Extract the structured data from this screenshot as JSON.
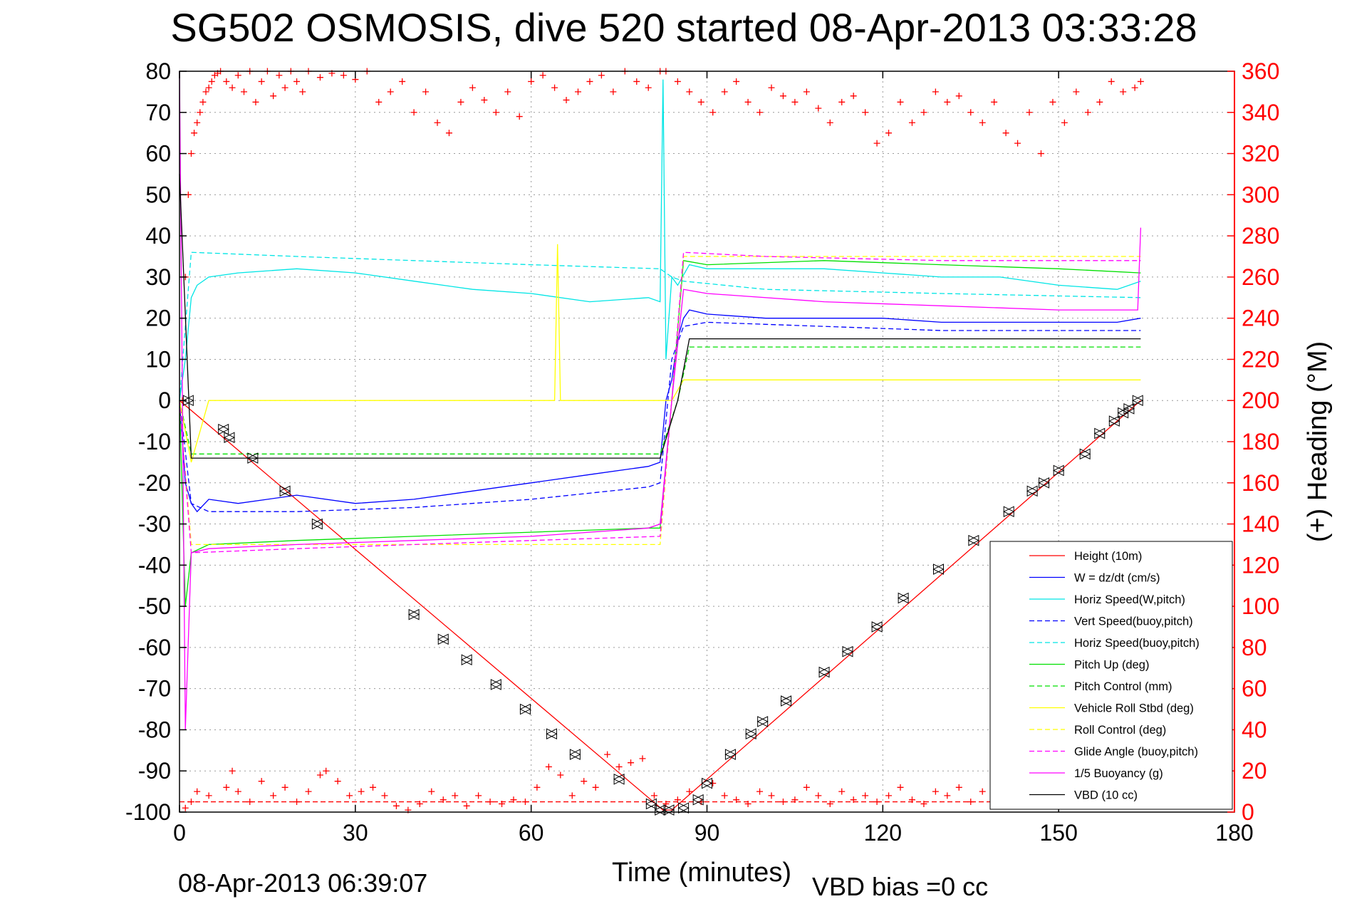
{
  "chart_data": {
    "type": "line",
    "title": "SG502 OSMOSIS, dive 520 started 08-Apr-2013 03:33:28",
    "xlabel": "Time (minutes)",
    "ylabel_right": "(+) Heading (°M)",
    "footer_left": "08-Apr-2013 06:39:07",
    "footer_right": "VBD bias =0 cc",
    "xlim": [
      0,
      180
    ],
    "ylim_left": [
      -100,
      80
    ],
    "ylim_right": [
      0,
      360
    ],
    "grid": true,
    "legend_position": "bottom-right",
    "x_ticks": [
      "0",
      "30",
      "60",
      "90",
      "120",
      "150",
      "180"
    ],
    "y_ticks_left": [
      "80",
      "70",
      "60",
      "50",
      "40",
      "30",
      "20",
      "10",
      "0",
      "-10",
      "-20",
      "-30",
      "-40",
      "-50",
      "-60",
      "-70",
      "-80",
      "-90",
      "-100"
    ],
    "y_ticks_right": [
      "360",
      "340",
      "320",
      "300",
      "280",
      "260",
      "240",
      "220",
      "200",
      "180",
      "160",
      "140",
      "120",
      "100",
      "80",
      "60",
      "40",
      "20",
      "0"
    ],
    "series": [
      {
        "name": "Height (10m)",
        "color": "#ff0000",
        "dash": false,
        "axis": "left",
        "x": [
          0,
          82.5,
          84,
          164
        ],
        "y": [
          0,
          -99.5,
          -99.5,
          0
        ]
      },
      {
        "name": "W = dz/dt (cm/s)",
        "color": "#0000ff",
        "dash": false,
        "axis": "left",
        "x": [
          0,
          1,
          2,
          3,
          5,
          10,
          20,
          30,
          40,
          50,
          60,
          70,
          80,
          82,
          83,
          84,
          85,
          86,
          87,
          90,
          100,
          110,
          120,
          130,
          140,
          150,
          160,
          164
        ],
        "y": [
          0,
          -20,
          -25,
          -27,
          -24,
          -25,
          -23,
          -25,
          -24,
          -22,
          -20,
          -18,
          -16,
          -15,
          0,
          5,
          15,
          20,
          22,
          21,
          20,
          20,
          20,
          19,
          19,
          19,
          19,
          20
        ]
      },
      {
        "name": "Horiz Speed(W,pitch)",
        "color": "#00e5e5",
        "dash": false,
        "axis": "left",
        "x": [
          0,
          1,
          2,
          3,
          5,
          10,
          20,
          30,
          40,
          50,
          60,
          70,
          80,
          82,
          82.5,
          83,
          84,
          85,
          87,
          90,
          100,
          110,
          120,
          130,
          140,
          150,
          160,
          164
        ],
        "y": [
          0,
          10,
          25,
          28,
          30,
          31,
          32,
          31,
          29,
          27,
          26,
          24,
          25,
          24,
          78,
          10,
          30,
          28,
          33,
          32,
          32,
          32,
          31,
          30,
          30,
          28,
          27,
          29
        ]
      },
      {
        "name": "Vert Speed(buoy,pitch)",
        "color": "#0000ff",
        "dash": true,
        "axis": "left",
        "x": [
          0,
          2,
          5,
          20,
          40,
          60,
          80,
          82,
          84,
          86,
          90,
          110,
          130,
          150,
          164
        ],
        "y": [
          0,
          -25,
          -27,
          -27,
          -26,
          -24,
          -21,
          -20,
          10,
          18,
          19,
          18,
          17,
          17,
          17
        ]
      },
      {
        "name": "Horiz Speed(buoy,pitch)",
        "color": "#00e5e5",
        "dash": true,
        "axis": "left",
        "x": [
          0,
          2,
          20,
          40,
          60,
          82,
          84,
          86,
          100,
          130,
          164
        ],
        "y": [
          0,
          36,
          35,
          34,
          33,
          32,
          30,
          29,
          27,
          26,
          25
        ]
      },
      {
        "name": "Pitch Up (deg)",
        "color": "#00e000",
        "dash": false,
        "axis": "left",
        "x": [
          0,
          1,
          2,
          5,
          20,
          40,
          60,
          80,
          82,
          84,
          86,
          90,
          110,
          130,
          150,
          164
        ],
        "y": [
          0,
          -50,
          -37,
          -35,
          -34,
          -33,
          -32,
          -31,
          -31,
          0,
          34,
          33,
          34,
          33,
          32,
          31
        ]
      },
      {
        "name": "Pitch Control (mm)",
        "color": "#00e000",
        "dash": true,
        "axis": "left",
        "x": [
          0,
          2,
          82,
          85,
          87,
          164
        ],
        "y": [
          0,
          -13,
          -13,
          0,
          13,
          13
        ]
      },
      {
        "name": "Vehicle Roll Stbd (deg)",
        "color": "#ffff00",
        "dash": false,
        "axis": "left",
        "x": [
          0,
          2,
          5,
          10,
          20,
          30,
          40,
          50,
          60,
          64,
          64.5,
          65,
          70,
          80,
          82,
          84,
          86,
          88,
          90,
          100,
          110,
          120,
          130,
          140,
          150,
          160,
          164
        ],
        "y": [
          0,
          -15,
          0,
          0,
          0,
          0,
          0,
          0,
          0,
          0,
          38,
          0,
          0,
          0,
          0,
          0,
          5,
          5,
          5,
          5,
          5,
          5,
          5,
          5,
          5,
          5,
          5
        ]
      },
      {
        "name": "Roll Control (deg)",
        "color": "#ffff00",
        "dash": true,
        "axis": "left",
        "x": [
          0,
          2,
          82,
          84,
          86,
          164
        ],
        "y": [
          0,
          -35,
          -35,
          0,
          35,
          35
        ]
      },
      {
        "name": "Glide Angle (buoy,pitch)",
        "color": "#ff00ff",
        "dash": true,
        "axis": "left",
        "x": [
          0,
          2,
          20,
          40,
          60,
          82,
          84,
          86,
          100,
          130,
          164
        ],
        "y": [
          0,
          -37,
          -36,
          -35,
          -34,
          -33,
          0,
          36,
          35,
          34,
          34
        ]
      },
      {
        "name": "1/5 Buoyancy (g)",
        "color": "#ff00ff",
        "dash": false,
        "axis": "left",
        "x": [
          0,
          1,
          2,
          5,
          20,
          40,
          60,
          80,
          82,
          84,
          86,
          90,
          110,
          130,
          150,
          163.5,
          164
        ],
        "y": [
          80,
          -80,
          -37,
          -36,
          -35,
          -34,
          -33,
          -31,
          -30,
          0,
          27,
          26,
          24,
          23,
          22,
          22,
          42
        ]
      },
      {
        "name": "VBD (10 cc)",
        "color": "#000000",
        "dash": false,
        "axis": "left",
        "x": [
          0,
          2,
          82,
          85,
          87,
          164
        ],
        "y": [
          55,
          -14,
          -14,
          0,
          15,
          15
        ]
      }
    ],
    "heading": {
      "color": "#ff0000",
      "axis": "right",
      "marker": "+",
      "reference_line": 5,
      "dive": {
        "x": [
          0.5,
          1,
          1.5,
          2,
          2.5,
          3,
          3.5,
          4,
          4.5,
          5,
          5.5,
          6,
          6.5,
          7,
          8,
          9,
          10,
          11,
          12,
          13,
          14,
          15,
          16,
          17,
          18,
          19,
          20,
          21,
          22,
          24,
          26,
          28,
          30,
          32,
          34,
          36,
          38,
          40,
          42,
          44,
          46,
          48,
          50,
          52,
          54,
          56,
          58,
          60,
          62,
          64,
          66,
          68,
          70,
          72,
          74,
          76,
          78,
          80,
          82
        ],
        "y": [
          200,
          260,
          300,
          320,
          330,
          335,
          340,
          345,
          350,
          352,
          355,
          358,
          359,
          360,
          355,
          352,
          358,
          350,
          360,
          345,
          355,
          360,
          348,
          358,
          352,
          360,
          355,
          350,
          360,
          357,
          359,
          358,
          356,
          360,
          345,
          350,
          355,
          340,
          350,
          335,
          330,
          345,
          352,
          346,
          340,
          350,
          338,
          355,
          358,
          352,
          346,
          350,
          355,
          358,
          350,
          360,
          355,
          352,
          360
        ]
      },
      "ascent_x": [
        83,
        85,
        87,
        89,
        91,
        93,
        95,
        97,
        99,
        101,
        103,
        105,
        107,
        109,
        111,
        113,
        115,
        117,
        119,
        121,
        123,
        125,
        127,
        129,
        131,
        133,
        135,
        137,
        139,
        141,
        143,
        145,
        147,
        149,
        151,
        153,
        155,
        157,
        159,
        161,
        163,
        164
      ],
      "ascent_y": [
        360,
        355,
        350,
        345,
        340,
        350,
        355,
        345,
        340,
        352,
        348,
        345,
        350,
        342,
        335,
        345,
        348,
        340,
        325,
        330,
        345,
        335,
        340,
        350,
        345,
        348,
        340,
        335,
        345,
        330,
        325,
        340,
        320,
        345,
        335,
        350,
        340,
        345,
        355,
        350,
        352,
        355
      ],
      "bottom_x": [
        1,
        2,
        3,
        5,
        8,
        9,
        10,
        12,
        14,
        16,
        18,
        20,
        22,
        24,
        25,
        27,
        29,
        31,
        33,
        35,
        37,
        39,
        41,
        43,
        45,
        47,
        49,
        51,
        53,
        55,
        57,
        59,
        61,
        63,
        65,
        67,
        69,
        71,
        73,
        75,
        77,
        79,
        81,
        83,
        85,
        87,
        89,
        91,
        93,
        95,
        97,
        99,
        101,
        103,
        105,
        107,
        109,
        111,
        113,
        115,
        117,
        119,
        121,
        123,
        125,
        127,
        129,
        131,
        133,
        135,
        137,
        139,
        141,
        143,
        145,
        147,
        149,
        151,
        153,
        155,
        157,
        159,
        161,
        163
      ],
      "bottom_y": [
        2,
        5,
        10,
        8,
        12,
        20,
        10,
        5,
        15,
        8,
        12,
        5,
        10,
        18,
        20,
        15,
        8,
        10,
        12,
        8,
        3,
        1,
        4,
        10,
        6,
        8,
        3,
        8,
        5,
        4,
        6,
        5,
        12,
        22,
        18,
        8,
        15,
        12,
        28,
        22,
        24,
        26,
        8,
        4,
        6,
        10,
        5,
        14,
        8,
        6,
        4,
        10,
        8,
        5,
        6,
        12,
        8,
        4,
        10,
        6,
        8,
        5,
        8,
        12,
        6,
        4,
        10,
        8,
        12,
        5,
        10,
        6,
        8,
        10,
        6,
        12,
        8,
        10,
        6,
        8,
        10,
        4,
        8,
        10
      ]
    },
    "depth_markers": {
      "marker": "triangle",
      "x": [
        1.5,
        7.5,
        8.5,
        12.5,
        18,
        23.5,
        40,
        45,
        49,
        54,
        59,
        63.5,
        67.5,
        75,
        80.5,
        82,
        83.5,
        86,
        88.5,
        90,
        94,
        97.5,
        99.5,
        103.5,
        110,
        114,
        119,
        123.5,
        129.5,
        135.5,
        141.5,
        145.5,
        147.5,
        150,
        154.5,
        157,
        159.5,
        161,
        162,
        163.5
      ],
      "y": [
        0,
        -7,
        -9,
        -14,
        -22,
        -30,
        -52,
        -58,
        -63,
        -69,
        -75,
        -81,
        -86,
        -92,
        -98,
        -99.5,
        -99.5,
        -99,
        -97,
        -93,
        -86,
        -81,
        -78,
        -73,
        -66,
        -61,
        -55,
        -48,
        -41,
        -34,
        -27,
        -22,
        -20,
        -17,
        -13,
        -8,
        -5,
        -3,
        -2,
        0
      ]
    }
  }
}
